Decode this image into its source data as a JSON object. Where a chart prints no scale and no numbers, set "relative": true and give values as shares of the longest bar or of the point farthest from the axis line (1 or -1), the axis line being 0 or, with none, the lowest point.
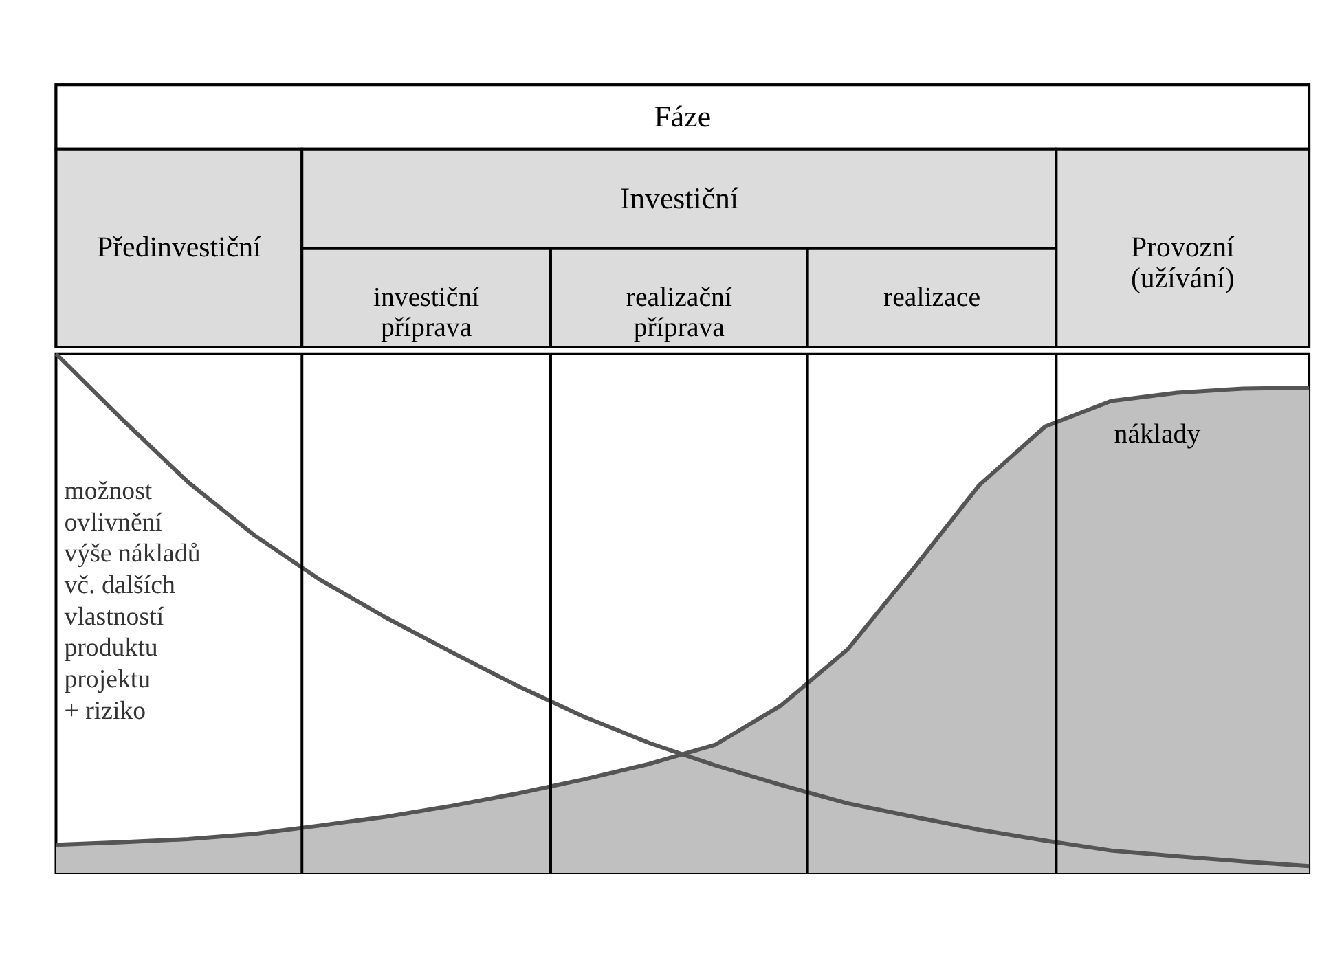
{
  "chart_data": {
    "type": "line",
    "relative": true,
    "annotations": [
      "Fáze",
      "Předinvestiční",
      "Investiční",
      "investiční\npříprava",
      "realizační\npříprava",
      "realizace",
      "Provozní\n(užívání)"
    ],
    "categories": [
      null,
      null,
      null,
      null,
      null,
      null,
      null,
      null,
      null,
      null,
      null,
      null,
      null,
      null,
      null,
      null,
      null,
      null,
      null,
      null
    ],
    "series": [
      {
        "name": "možnost\novlivnění\nvýše nákladů\nvč. dalších\nvlastností\nproduktu\nprojektu\n+ riziko",
        "color": "#555555",
        "values": [
          1,
          0.874,
          0.753,
          0.651,
          0.565,
          0.492,
          0.425,
          0.36,
          0.301,
          0.25,
          0.207,
          0.169,
          0.134,
          0.108,
          0.083,
          0.062,
          0.043,
          0.032,
          0.022,
          0.013
        ]
      },
      {
        "name": "náklady",
        "type": "area",
        "color": "#c0c0c0",
        "values": [
          0.054,
          0.059,
          0.065,
          0.075,
          0.091,
          0.108,
          0.129,
          0.153,
          0.18,
          0.21,
          0.247,
          0.323,
          0.43,
          0.586,
          0.747,
          0.86,
          0.909,
          0.925,
          0.933,
          0.935
        ]
      }
    ]
  }
}
